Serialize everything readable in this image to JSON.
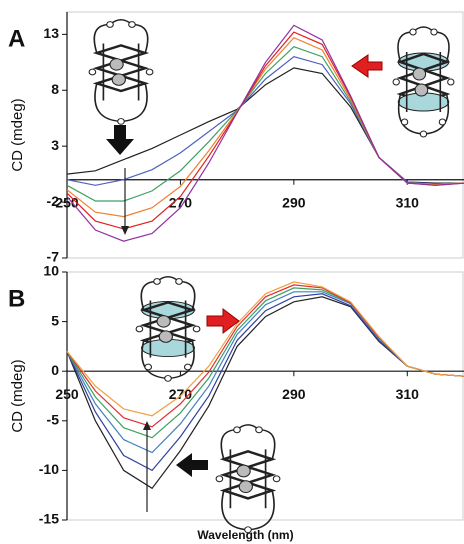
{
  "chart_data": [
    {
      "type": "line",
      "panel": "A",
      "ylabel": "CD (mdeg)",
      "x": [
        250,
        255,
        260,
        265,
        270,
        275,
        280,
        285,
        290,
        295,
        300,
        305,
        310,
        315,
        320
      ],
      "xlim": [
        250,
        320
      ],
      "ylim": [
        -7,
        15
      ],
      "xticks": [
        250,
        270,
        290,
        310
      ],
      "yticks": [
        -7,
        -2,
        3,
        8,
        13
      ],
      "series": [
        {
          "color": "#222222",
          "values": [
            0.5,
            0.8,
            1.8,
            2.8,
            4.0,
            5.2,
            6.3,
            8.5,
            10.0,
            9.5,
            6.5,
            2.0,
            -0.2,
            -0.3,
            -0.3
          ]
        },
        {
          "color": "#5060c0",
          "values": [
            0.0,
            -0.5,
            0.0,
            0.9,
            2.4,
            4.3,
            6.2,
            9.0,
            11.0,
            10.3,
            6.8,
            2.0,
            -0.2,
            -0.4,
            -0.3
          ]
        },
        {
          "color": "#40a060",
          "values": [
            -0.5,
            -1.9,
            -1.9,
            -1.0,
            0.8,
            3.4,
            6.2,
            9.5,
            11.9,
            11.0,
            7.0,
            2.0,
            -0.3,
            -0.4,
            -0.3
          ]
        },
        {
          "color": "#f08030",
          "values": [
            -0.9,
            -2.9,
            -3.3,
            -2.5,
            -0.6,
            2.6,
            6.1,
            9.9,
            12.7,
            11.6,
            7.2,
            2.0,
            -0.3,
            -0.4,
            -0.3
          ]
        },
        {
          "color": "#e02020",
          "values": [
            -1.2,
            -3.7,
            -4.4,
            -3.7,
            -1.5,
            2.1,
            6.0,
            10.2,
            13.2,
            12.1,
            7.4,
            2.0,
            -0.3,
            -0.5,
            -0.3
          ]
        },
        {
          "color": "#9030a0",
          "values": [
            -1.5,
            -4.5,
            -5.5,
            -4.8,
            -2.5,
            1.5,
            6.0,
            10.5,
            13.8,
            12.5,
            7.5,
            2.0,
            -0.3,
            -0.5,
            -0.3
          ]
        }
      ]
    },
    {
      "type": "line",
      "panel": "B",
      "ylabel": "CD (mdeg)",
      "xlabel": "Wavelength (nm)",
      "x": [
        250,
        255,
        260,
        265,
        270,
        275,
        280,
        285,
        290,
        295,
        300,
        305,
        310,
        315,
        320
      ],
      "xlim": [
        250,
        320
      ],
      "ylim": [
        -15,
        10
      ],
      "xticks": [
        250,
        270,
        290,
        310
      ],
      "yticks": [
        -15,
        -10,
        -5,
        0,
        5,
        10
      ],
      "series": [
        {
          "color": "#222222",
          "values": [
            2.0,
            -5.0,
            -10.0,
            -11.8,
            -8.0,
            -3.5,
            2.5,
            5.5,
            7.0,
            7.5,
            6.5,
            3.0,
            0.5,
            -0.3,
            -0.5
          ]
        },
        {
          "color": "#3040a0",
          "values": [
            2.0,
            -4.1,
            -8.5,
            -10.0,
            -6.6,
            -2.5,
            3.1,
            6.1,
            7.5,
            7.8,
            6.6,
            3.1,
            0.5,
            -0.3,
            -0.5
          ]
        },
        {
          "color": "#4080c0",
          "values": [
            2.0,
            -3.3,
            -6.9,
            -8.2,
            -5.3,
            -1.5,
            3.7,
            6.7,
            8.0,
            8.0,
            6.8,
            3.3,
            0.5,
            -0.3,
            -0.5
          ]
        },
        {
          "color": "#40a060",
          "values": [
            2.0,
            -2.6,
            -5.7,
            -6.7,
            -4.2,
            -0.7,
            4.1,
            7.1,
            8.4,
            8.2,
            6.9,
            3.4,
            0.5,
            -0.3,
            -0.5
          ]
        },
        {
          "color": "#e03030",
          "values": [
            2.0,
            -2.0,
            -4.7,
            -5.6,
            -3.3,
            -0.1,
            4.5,
            7.5,
            8.7,
            8.4,
            6.9,
            3.4,
            0.5,
            -0.3,
            -0.5
          ]
        },
        {
          "color": "#f0a040",
          "values": [
            2.0,
            -1.5,
            -3.8,
            -4.5,
            -2.5,
            0.5,
            4.8,
            7.8,
            9.0,
            8.5,
            7.0,
            3.5,
            0.5,
            -0.3,
            -0.5
          ]
        }
      ]
    }
  ]
}
